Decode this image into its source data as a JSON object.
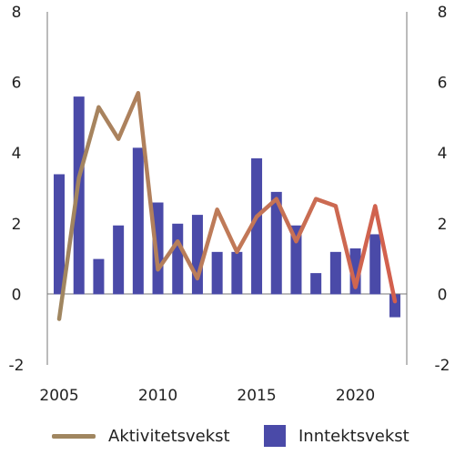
{
  "chart_data": {
    "type": "bar+line",
    "title": "",
    "xlabel": "",
    "ylabel": "",
    "ylim": [
      -2,
      8
    ],
    "yticks": [
      -2,
      0,
      2,
      4,
      6,
      8
    ],
    "xticks": [
      2005,
      2010,
      2015,
      2020
    ],
    "xlim": [
      2004.4,
      2022.6
    ],
    "grid": false,
    "legend_position": "bottom",
    "categories": [
      2005,
      2006,
      2007,
      2008,
      2009,
      2010,
      2011,
      2012,
      2013,
      2014,
      2015,
      2016,
      2017,
      2018,
      2019,
      2020,
      2021,
      2022
    ],
    "series": [
      {
        "name": "Inntektsvekst",
        "type": "bar",
        "color": "#4a4aa8",
        "values": [
          3.4,
          5.6,
          1.0,
          1.95,
          4.15,
          2.6,
          2.0,
          2.25,
          1.2,
          1.2,
          3.85,
          2.9,
          1.95,
          0.6,
          1.2,
          1.3,
          1.7,
          -0.65
        ]
      },
      {
        "name": "Aktivitetsvekst",
        "type": "line",
        "color_gradient": [
          "#a08660",
          "#d35f4d"
        ],
        "values": [
          -0.7,
          3.3,
          5.3,
          4.4,
          5.7,
          0.7,
          1.5,
          0.45,
          2.4,
          1.2,
          2.2,
          2.7,
          1.5,
          2.7,
          2.5,
          0.2,
          2.5,
          -0.2
        ]
      }
    ]
  },
  "legend": {
    "line_label": "Aktivitetsvekst",
    "bar_label": "Inntektsvekst",
    "line_color": "#a08660",
    "bar_color": "#4a4aa8"
  }
}
